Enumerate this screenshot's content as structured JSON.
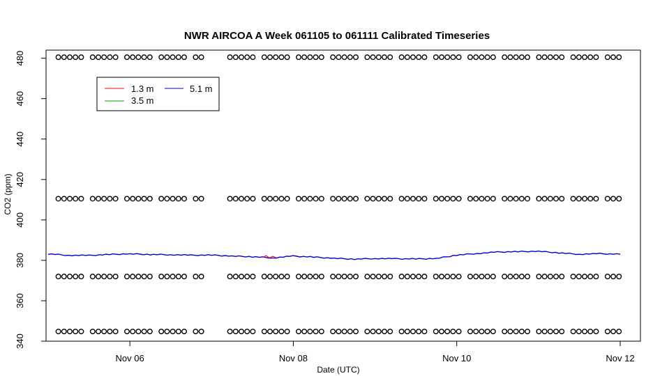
{
  "chart_data": {
    "type": "line",
    "title": "NWR AIRCOA A  Week 061105 to 061111  Calibrated Timeseries",
    "xlabel": "Date (UTC)",
    "ylabel": "CO2 (ppm)",
    "xlim": [
      "2006-11-05T00:00",
      "2006-11-12T00:00"
    ],
    "ylim": [
      340,
      484
    ],
    "x_ticks": [
      {
        "label": "Nov 06",
        "date": "2006-11-06"
      },
      {
        "label": "Nov 08",
        "date": "2006-11-08"
      },
      {
        "label": "Nov 10",
        "date": "2006-11-10"
      },
      {
        "label": "Nov 12",
        "date": "2006-11-12"
      }
    ],
    "y_ticks": [
      340,
      360,
      380,
      400,
      420,
      440,
      460,
      480
    ],
    "grid": false,
    "legend": {
      "placement": "top-left",
      "entries": [
        {
          "name": "1.3 m",
          "color": "#ff0000"
        },
        {
          "name": "3.5 m",
          "color": "#00a000"
        },
        {
          "name": "5.1 m",
          "color": "#0000cc"
        }
      ]
    },
    "series": [
      {
        "name": "5.1 m",
        "color": "#0000cc",
        "x": [
          "2006-11-05T00:00",
          "2006-11-05T06:00",
          "2006-11-05T12:00",
          "2006-11-05T18:00",
          "2006-11-06T00:00",
          "2006-11-06T06:00",
          "2006-11-06T12:00",
          "2006-11-06T18:00",
          "2006-11-07T00:00",
          "2006-11-07T06:00",
          "2006-11-07T12:00",
          "2006-11-07T18:00",
          "2006-11-08T00:00",
          "2006-11-08T06:00",
          "2006-11-08T12:00",
          "2006-11-08T18:00",
          "2006-11-09T00:00",
          "2006-11-09T06:00",
          "2006-11-09T12:00",
          "2006-11-09T18:00",
          "2006-11-10T00:00",
          "2006-11-10T06:00",
          "2006-11-10T12:00",
          "2006-11-10T18:00",
          "2006-11-11T00:00",
          "2006-11-11T06:00",
          "2006-11-11T12:00",
          "2006-11-11T18:00",
          "2006-11-12T00:00"
        ],
        "values": [
          383.2,
          382.5,
          382.4,
          382.9,
          383.2,
          382.9,
          382.8,
          382.5,
          382.6,
          382.1,
          381.8,
          381.2,
          382.1,
          381.6,
          381.0,
          380.6,
          380.9,
          380.8,
          380.7,
          380.9,
          382.6,
          383.4,
          384.1,
          384.3,
          384.5,
          383.7,
          383.0,
          383.3,
          383.0
        ]
      },
      {
        "name": "1.3 m",
        "color": "#ff0000",
        "x": [
          "2006-11-07T15:00",
          "2006-11-07T16:00",
          "2006-11-07T17:00",
          "2006-11-07T18:00",
          "2006-11-07T19:00"
        ],
        "values": [
          381.4,
          382.3,
          381.2,
          382.0,
          381.3
        ]
      }
    ],
    "flag_series": {
      "marker": "open-circle",
      "y_levels": [
        480.5,
        410.5,
        372.0,
        344.8
      ],
      "gap": [
        "2006-11-06T21:00",
        "2006-11-07T03:00"
      ],
      "x_start": "2006-11-05T03:00",
      "x_end": "2006-11-11T24:00"
    }
  }
}
